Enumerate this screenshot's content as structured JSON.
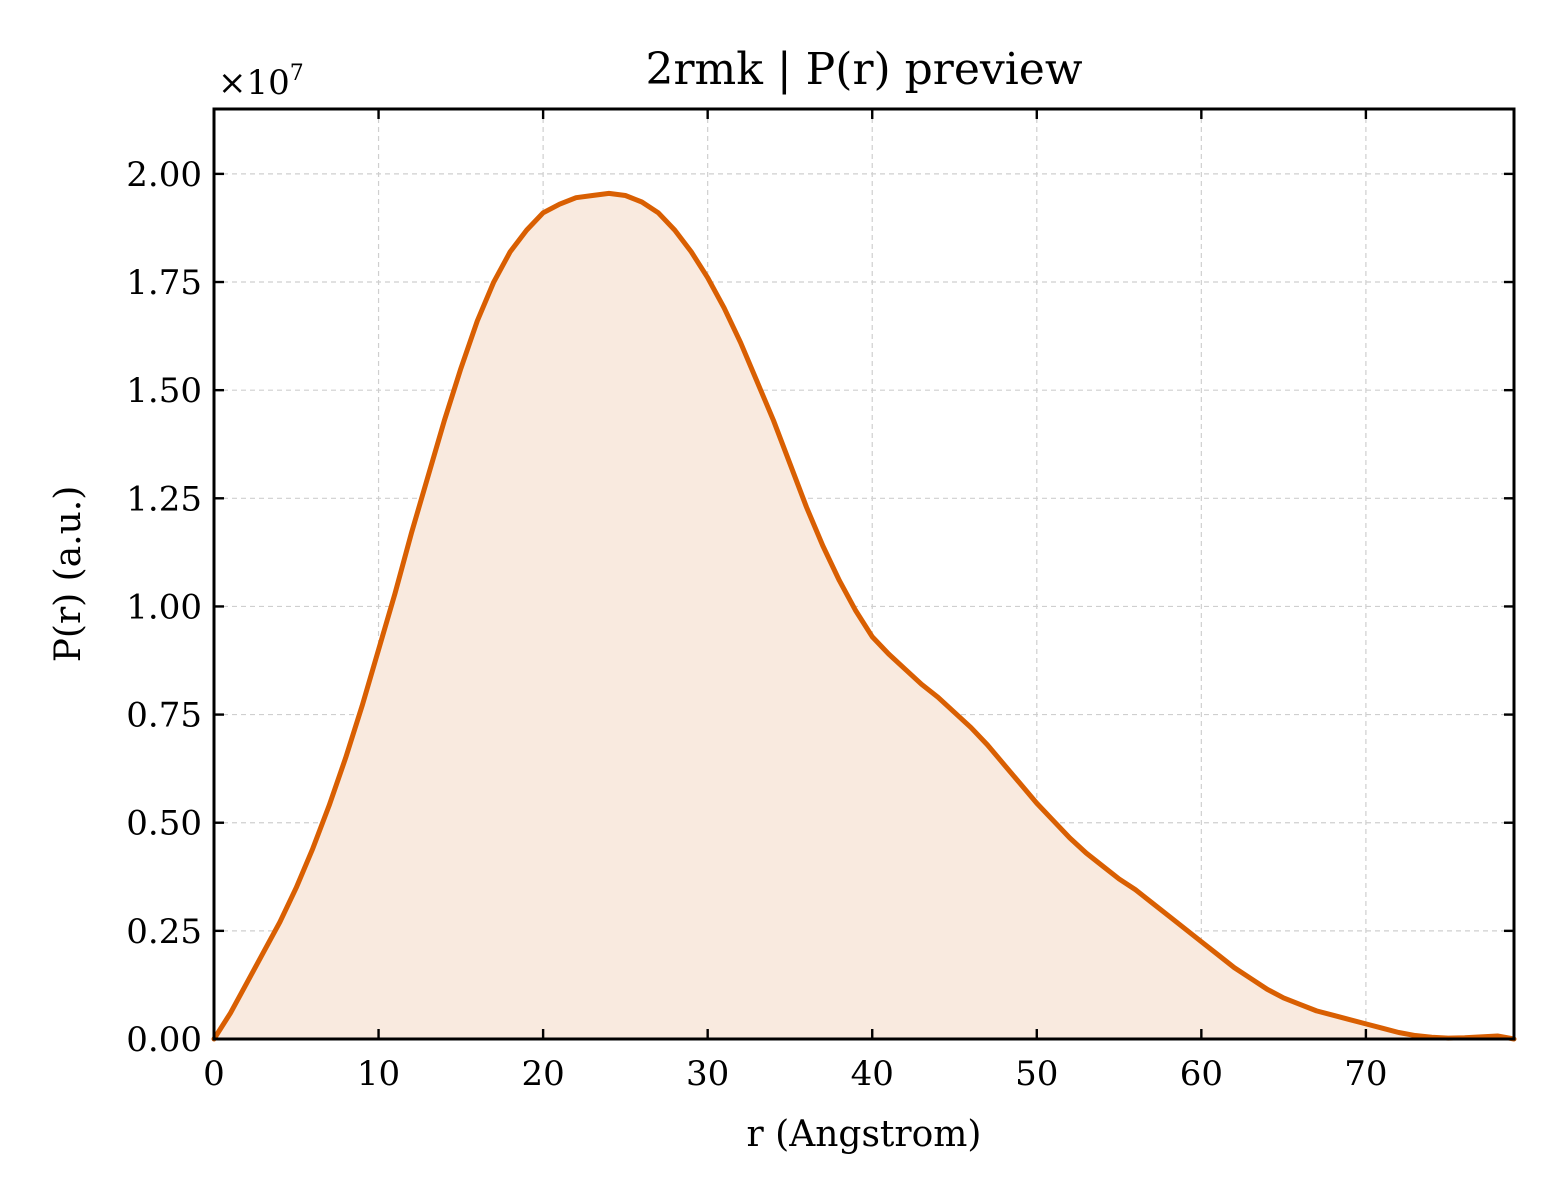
{
  "chart_data": {
    "type": "area",
    "title": "2rmk | P(r) preview",
    "xlabel": "r (Angstrom)",
    "ylabel": "P(r) (a.u.)",
    "y_multiplier_label": "×10",
    "y_multiplier_exponent": "7",
    "xlim": [
      0,
      79
    ],
    "ylim": [
      0,
      2.15
    ],
    "x_ticks": [
      0,
      10,
      20,
      30,
      40,
      50,
      60,
      70
    ],
    "x_tick_labels": [
      "0",
      "10",
      "20",
      "30",
      "40",
      "50",
      "60",
      "70"
    ],
    "y_ticks": [
      0,
      0.25,
      0.5,
      0.75,
      1.0,
      1.25,
      1.5,
      1.75,
      2.0
    ],
    "y_tick_labels": [
      "0.00",
      "0.25",
      "0.50",
      "0.75",
      "1.00",
      "1.25",
      "1.50",
      "1.75",
      "2.00"
    ],
    "grid": true,
    "line_color": "#d95f02",
    "fill_color": "#f9eadf",
    "series": [
      {
        "x": [
          0,
          1,
          2,
          3,
          4,
          5,
          6,
          7,
          8,
          9,
          10,
          11,
          12,
          13,
          14,
          15,
          16,
          17,
          18,
          19,
          20,
          21,
          22,
          23,
          24,
          25,
          26,
          27,
          28,
          29,
          30,
          31,
          32,
          33,
          34,
          35,
          36,
          37,
          38,
          39,
          40,
          41,
          42,
          43,
          44,
          45,
          46,
          47,
          48,
          49,
          50,
          51,
          52,
          53,
          54,
          55,
          56,
          57,
          58,
          59,
          60,
          61,
          62,
          63,
          64,
          65,
          66,
          67,
          68,
          69,
          70,
          71,
          72,
          73,
          74,
          75,
          76,
          77,
          78,
          79
        ],
        "y": [
          0.0,
          0.06,
          0.13,
          0.2,
          0.27,
          0.35,
          0.44,
          0.54,
          0.65,
          0.77,
          0.9,
          1.03,
          1.17,
          1.3,
          1.43,
          1.55,
          1.66,
          1.75,
          1.82,
          1.87,
          1.91,
          1.93,
          1.945,
          1.95,
          1.955,
          1.95,
          1.935,
          1.91,
          1.87,
          1.82,
          1.76,
          1.69,
          1.61,
          1.52,
          1.43,
          1.33,
          1.23,
          1.14,
          1.06,
          0.99,
          0.93,
          0.89,
          0.855,
          0.82,
          0.79,
          0.755,
          0.72,
          0.68,
          0.635,
          0.59,
          0.545,
          0.505,
          0.465,
          0.43,
          0.4,
          0.37,
          0.345,
          0.315,
          0.285,
          0.255,
          0.225,
          0.195,
          0.165,
          0.14,
          0.115,
          0.095,
          0.08,
          0.065,
          0.055,
          0.045,
          0.035,
          0.025,
          0.015,
          0.008,
          0.004,
          0.002,
          0.003,
          0.005,
          0.007,
          0.0
        ]
      }
    ]
  }
}
